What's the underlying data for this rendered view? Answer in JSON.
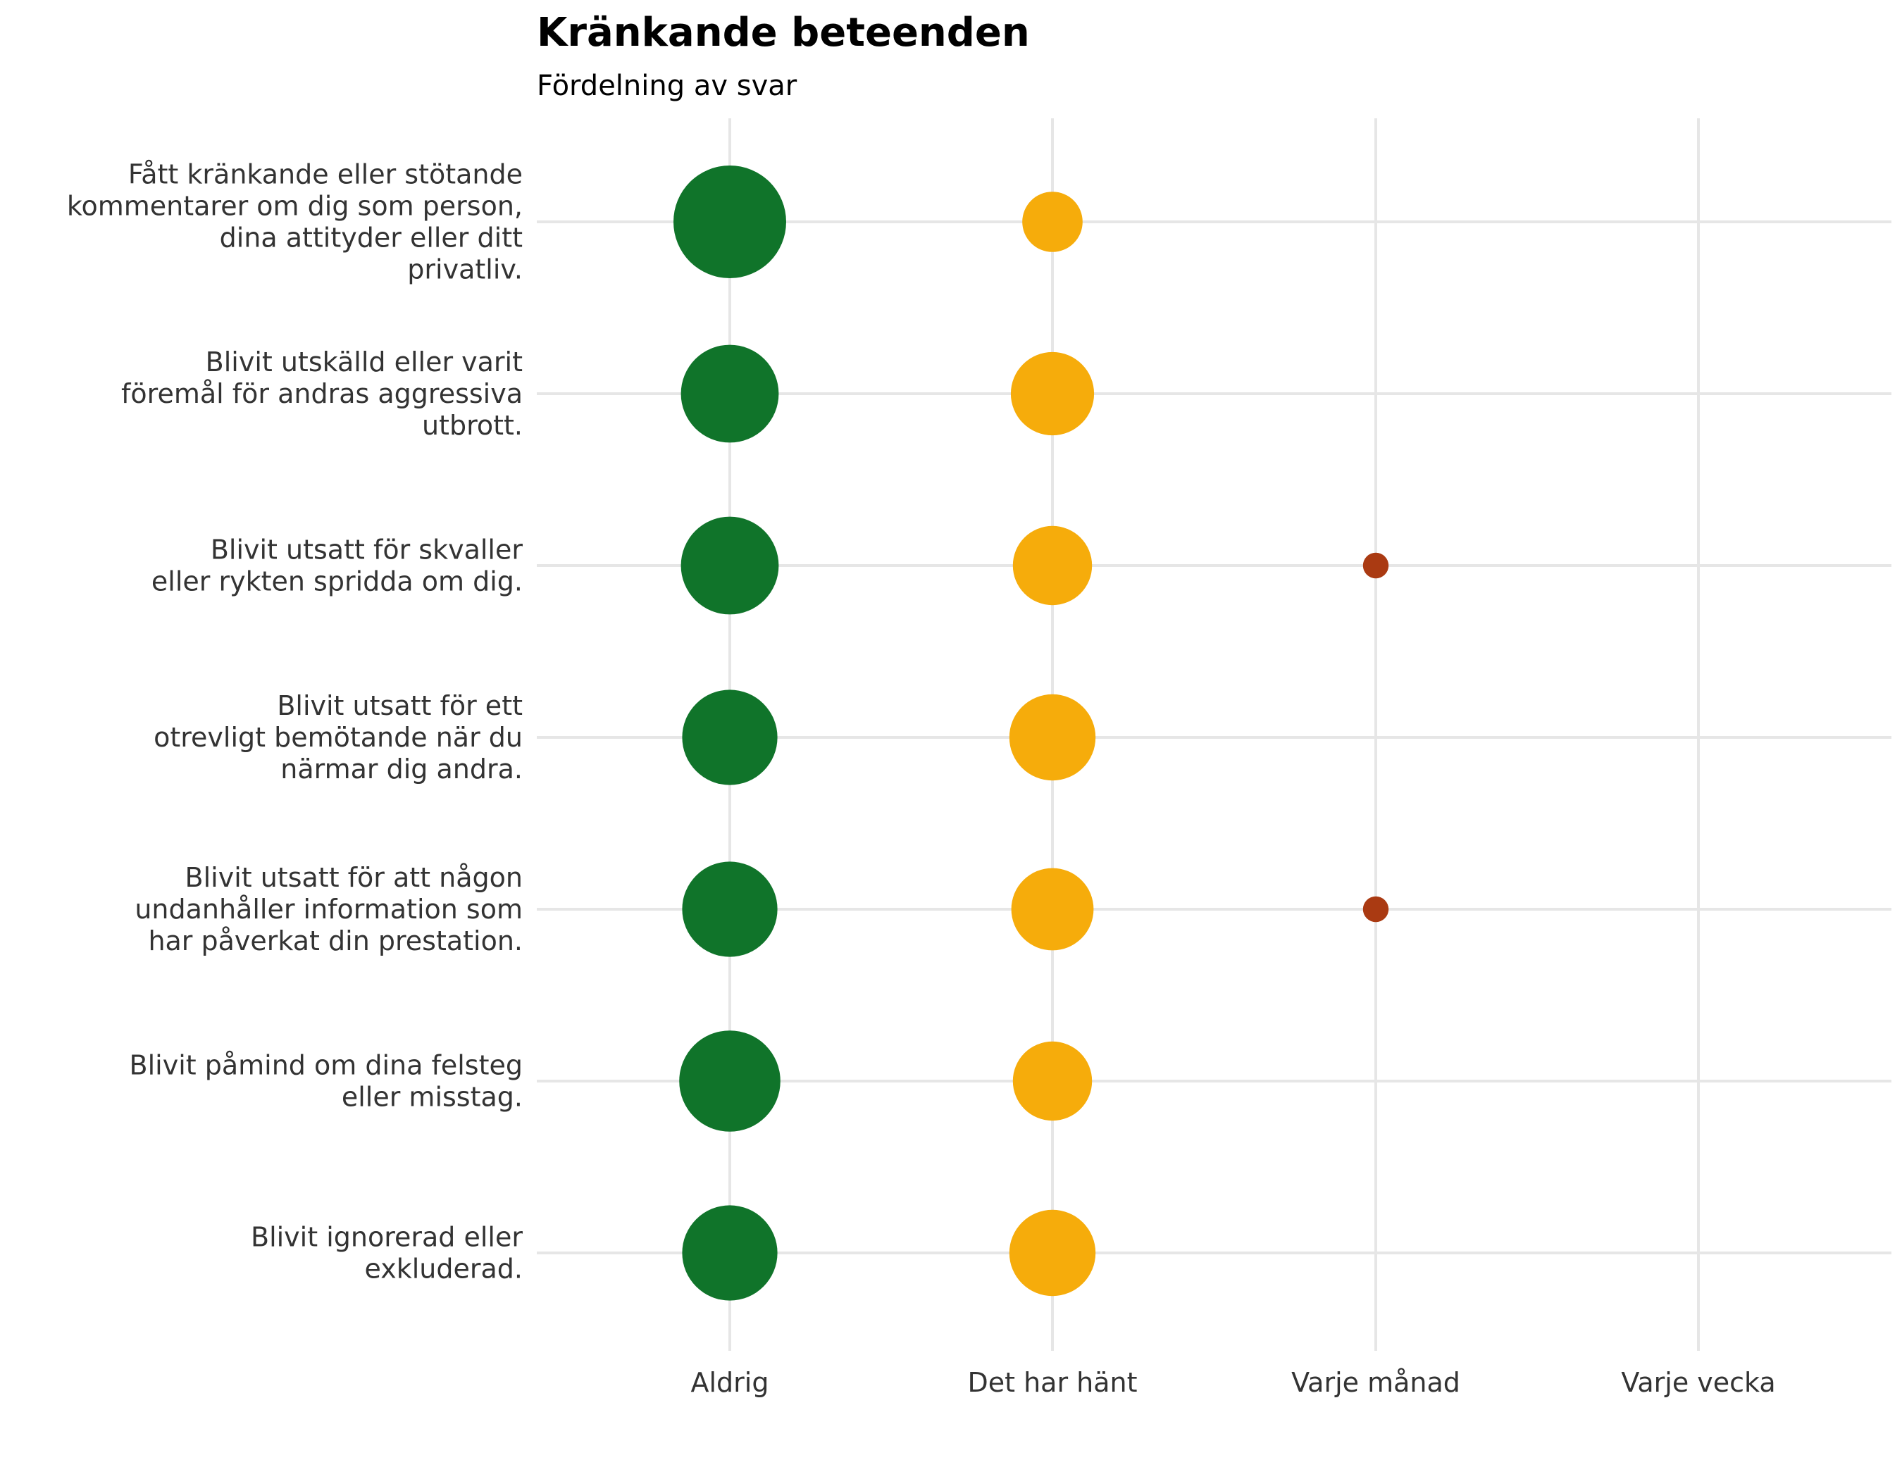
{
  "chart_data": {
    "type": "scatter",
    "title": "Kränkande beteenden",
    "subtitle": "Fördelning av svar",
    "categories_x": [
      "Aldrig",
      "Det har hänt",
      "Varje månad",
      "Varje vecka"
    ],
    "categories_y": [
      [
        "Fått kränkande eller stötande",
        "kommentarer om dig som person,",
        "dina attityder eller ditt",
        "privatliv."
      ],
      [
        "Blivit utskälld eller varit",
        "föremål för andras aggressiva",
        "utbrott."
      ],
      [
        "Blivit utsatt för skvaller",
        "eller rykten spridda om dig."
      ],
      [
        "Blivit utsatt för ett",
        "otrevligt bemötande när du",
        "närmar dig andra."
      ],
      [
        "Blivit utsatt för att någon",
        "undanhåller information som",
        "har påverkat din prestation."
      ],
      [
        "Blivit påmind om dina felsteg",
        "eller misstag."
      ],
      [
        "Blivit ignorerad eller",
        "exkluderad."
      ]
    ],
    "series": [
      {
        "category": "Aldrig",
        "color": "#10742a",
        "values": [
          0.77,
          0.58,
          0.58,
          0.55,
          0.55,
          0.62,
          0.55
        ]
      },
      {
        "category": "Det har hänt",
        "color": "#f6ac0b",
        "values": [
          0.22,
          0.42,
          0.38,
          0.45,
          0.41,
          0.38,
          0.45
        ]
      },
      {
        "category": "Varje månad",
        "color": "#aa3a12",
        "values": [
          0,
          0,
          0.04,
          0,
          0.04,
          0,
          0
        ]
      },
      {
        "category": "Varje vecka",
        "color": "#aa3a12",
        "values": [
          0,
          0,
          0,
          0,
          0,
          0,
          0
        ]
      }
    ],
    "grid": true,
    "legend": "none"
  }
}
